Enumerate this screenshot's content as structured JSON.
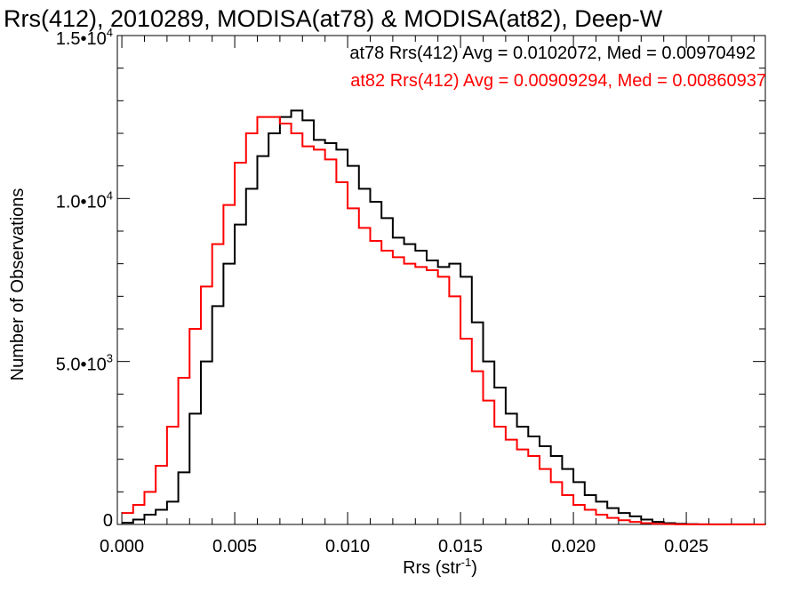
{
  "chart_data": {
    "type": "line",
    "style": "step-histogram",
    "title": "Rrs(412), 2010289, MODISA(at78) & MODISA(at82), Deep-W",
    "xlabel": "Rrs (str",
    "xlabel_sup": "-1",
    "xlabel_close": ")",
    "ylabel": "Number of Observations",
    "xlim": [
      -0.0002,
      0.0285
    ],
    "ylim": [
      0,
      15000
    ],
    "x_ticks": [
      {
        "value": 0.0,
        "label": "0.000"
      },
      {
        "value": 0.005,
        "label": "0.005"
      },
      {
        "value": 0.01,
        "label": "0.010"
      },
      {
        "value": 0.015,
        "label": "0.015"
      },
      {
        "value": 0.02,
        "label": "0.020"
      },
      {
        "value": 0.025,
        "label": "0.025"
      }
    ],
    "y_ticks": [
      {
        "value": 0,
        "base": "0",
        "exp": ""
      },
      {
        "value": 5000,
        "base": "5.0•10",
        "exp": "3"
      },
      {
        "value": 10000,
        "base": "1.0•10",
        "exp": "4"
      },
      {
        "value": 15000,
        "base": "1.5•10",
        "exp": "4"
      }
    ],
    "grid": false,
    "legend_position": "top-right",
    "series": [
      {
        "name": "at78",
        "color": "#000000",
        "legend_text": "at78 Rrs(412) Avg = 0.0102072, Med = 0.00970492",
        "x": [
          0.0,
          0.0005,
          0.001,
          0.0015,
          0.002,
          0.0025,
          0.003,
          0.0035,
          0.004,
          0.0045,
          0.005,
          0.0055,
          0.006,
          0.0065,
          0.007,
          0.0075,
          0.008,
          0.0085,
          0.009,
          0.0095,
          0.01,
          0.0105,
          0.011,
          0.0115,
          0.012,
          0.0125,
          0.013,
          0.0135,
          0.014,
          0.0145,
          0.015,
          0.0155,
          0.016,
          0.0165,
          0.017,
          0.0175,
          0.018,
          0.0185,
          0.019,
          0.0195,
          0.02,
          0.0205,
          0.021,
          0.0215,
          0.022,
          0.0225,
          0.023,
          0.0235,
          0.024,
          0.0245,
          0.025,
          0.0255,
          0.026,
          0.027,
          0.028,
          0.0285
        ],
        "y": [
          50,
          150,
          300,
          450,
          700,
          1600,
          3400,
          5000,
          6700,
          8000,
          9200,
          10300,
          11300,
          12000,
          12500,
          12700,
          12400,
          11800,
          11700,
          11500,
          11000,
          10300,
          9900,
          9400,
          8800,
          8600,
          8400,
          8100,
          7900,
          8000,
          7600,
          6200,
          5000,
          4200,
          3400,
          3000,
          2700,
          2400,
          2100,
          1700,
          1300,
          900,
          700,
          500,
          350,
          250,
          150,
          80,
          40,
          20,
          10,
          5,
          3,
          2,
          1,
          0
        ]
      },
      {
        "name": "at82",
        "color": "#ff0000",
        "legend_text": "at82 Rrs(412) Avg = 0.00909294, Med = 0.00860937",
        "x": [
          0.0,
          0.0005,
          0.001,
          0.0015,
          0.002,
          0.0025,
          0.003,
          0.0035,
          0.004,
          0.0045,
          0.005,
          0.0055,
          0.006,
          0.0065,
          0.007,
          0.0075,
          0.008,
          0.0085,
          0.009,
          0.0095,
          0.01,
          0.0105,
          0.011,
          0.0115,
          0.012,
          0.0125,
          0.013,
          0.0135,
          0.014,
          0.0145,
          0.015,
          0.0155,
          0.016,
          0.0165,
          0.017,
          0.0175,
          0.018,
          0.0185,
          0.019,
          0.0195,
          0.02,
          0.0205,
          0.021,
          0.0215,
          0.022,
          0.0225,
          0.023,
          0.0235,
          0.024,
          0.0245,
          0.025,
          0.0255,
          0.026,
          0.027,
          0.028,
          0.0285
        ],
        "y": [
          350,
          600,
          1000,
          1800,
          3000,
          4500,
          6000,
          7300,
          8600,
          9800,
          11100,
          12000,
          12500,
          12500,
          12300,
          12000,
          11600,
          11500,
          11200,
          10500,
          9700,
          9100,
          8700,
          8400,
          8200,
          8000,
          7900,
          7800,
          7600,
          7000,
          5700,
          4700,
          3800,
          3000,
          2600,
          2300,
          2100,
          1700,
          1300,
          900,
          600,
          450,
          300,
          200,
          130,
          80,
          40,
          20,
          10,
          5,
          3,
          2,
          1,
          0,
          0,
          0
        ]
      }
    ]
  }
}
